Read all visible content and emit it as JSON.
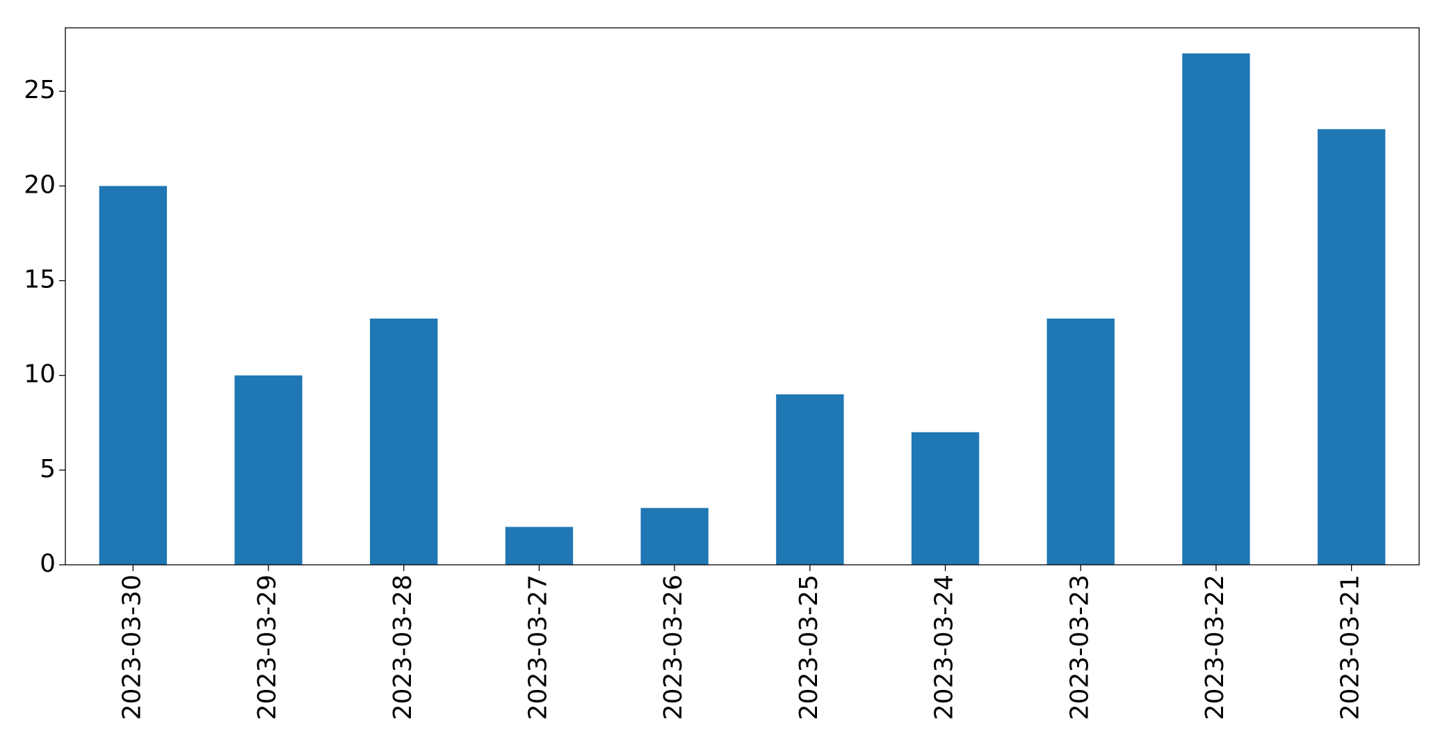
{
  "chart_data": {
    "type": "bar",
    "categories": [
      "2023-03-30",
      "2023-03-29",
      "2023-03-28",
      "2023-03-27",
      "2023-03-26",
      "2023-03-25",
      "2023-03-24",
      "2023-03-23",
      "2023-03-22",
      "2023-03-21"
    ],
    "values": [
      20,
      10,
      13,
      2,
      3,
      9,
      7,
      13,
      27,
      23
    ],
    "color": "#1f77b4",
    "ylim": [
      0,
      28.35
    ],
    "yticks": [
      0,
      5,
      10,
      15,
      20,
      25
    ],
    "grid": false
  }
}
